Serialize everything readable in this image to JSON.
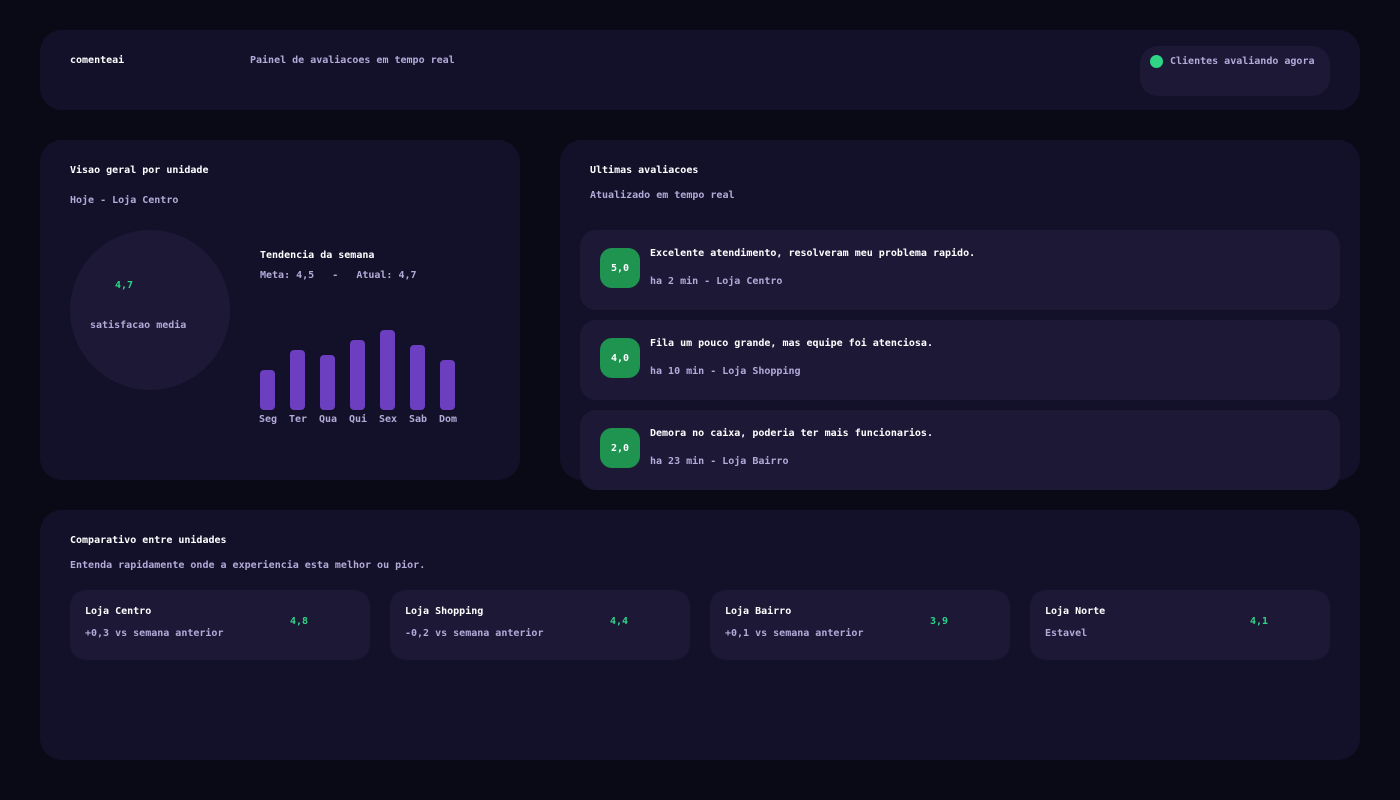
{
  "header": {
    "brand": "comenteai",
    "subtitle": "Painel de avaliacoes em tempo real",
    "live_status": "Clientes avaliando agora"
  },
  "overview": {
    "title": "Visao geral por unidade",
    "context": "Hoje - Loja Centro",
    "satisfaction_value": "4,7",
    "satisfaction_label": "satisfacao media",
    "trend_title": "Tendencia da semana",
    "trend_meta": "Meta: 4,5   -   Atual: 4,7",
    "days": [
      {
        "label": "Seg",
        "value": 40
      },
      {
        "label": "Ter",
        "value": 60
      },
      {
        "label": "Qua",
        "value": 55
      },
      {
        "label": "Qui",
        "value": 70
      },
      {
        "label": "Sex",
        "value": 80
      },
      {
        "label": "Sab",
        "value": 65
      },
      {
        "label": "Dom",
        "value": 50
      }
    ]
  },
  "reviews": {
    "title": "Ultimas avaliacoes",
    "subtitle": "Atualizado em tempo real",
    "items": [
      {
        "score": "5,0",
        "text": "Excelente atendimento, resolveram meu problema rapido.",
        "meta": "ha 2 min - Loja Centro"
      },
      {
        "score": "4,0",
        "text": "Fila um pouco grande, mas equipe foi atenciosa.",
        "meta": "ha 10 min - Loja Shopping"
      },
      {
        "score": "2,0",
        "text": "Demora no caixa, poderia ter mais funcionarios.",
        "meta": "ha 23 min - Loja Bairro"
      }
    ]
  },
  "comparison": {
    "title": "Comparativo entre unidades",
    "subtitle": "Entenda rapidamente onde a experiencia esta melhor ou pior.",
    "units": [
      {
        "name": "Loja Centro",
        "delta": "+0,3 vs semana anterior",
        "score": "4,8"
      },
      {
        "name": "Loja Shopping",
        "delta": "-0,2 vs semana anterior",
        "score": "4,4"
      },
      {
        "name": "Loja Bairro",
        "delta": "+0,1 vs semana anterior",
        "score": "3,9"
      },
      {
        "name": "Loja Norte",
        "delta": "Estavel",
        "score": "4,1"
      }
    ]
  },
  "colors": {
    "background": "#0a0a16",
    "card": "#13112a",
    "inner_card": "#1c1836",
    "accent_green": "#2ed585",
    "score_badge": "#1f9350",
    "bar": "#6b3fbf",
    "muted_text": "#b3aad8"
  }
}
